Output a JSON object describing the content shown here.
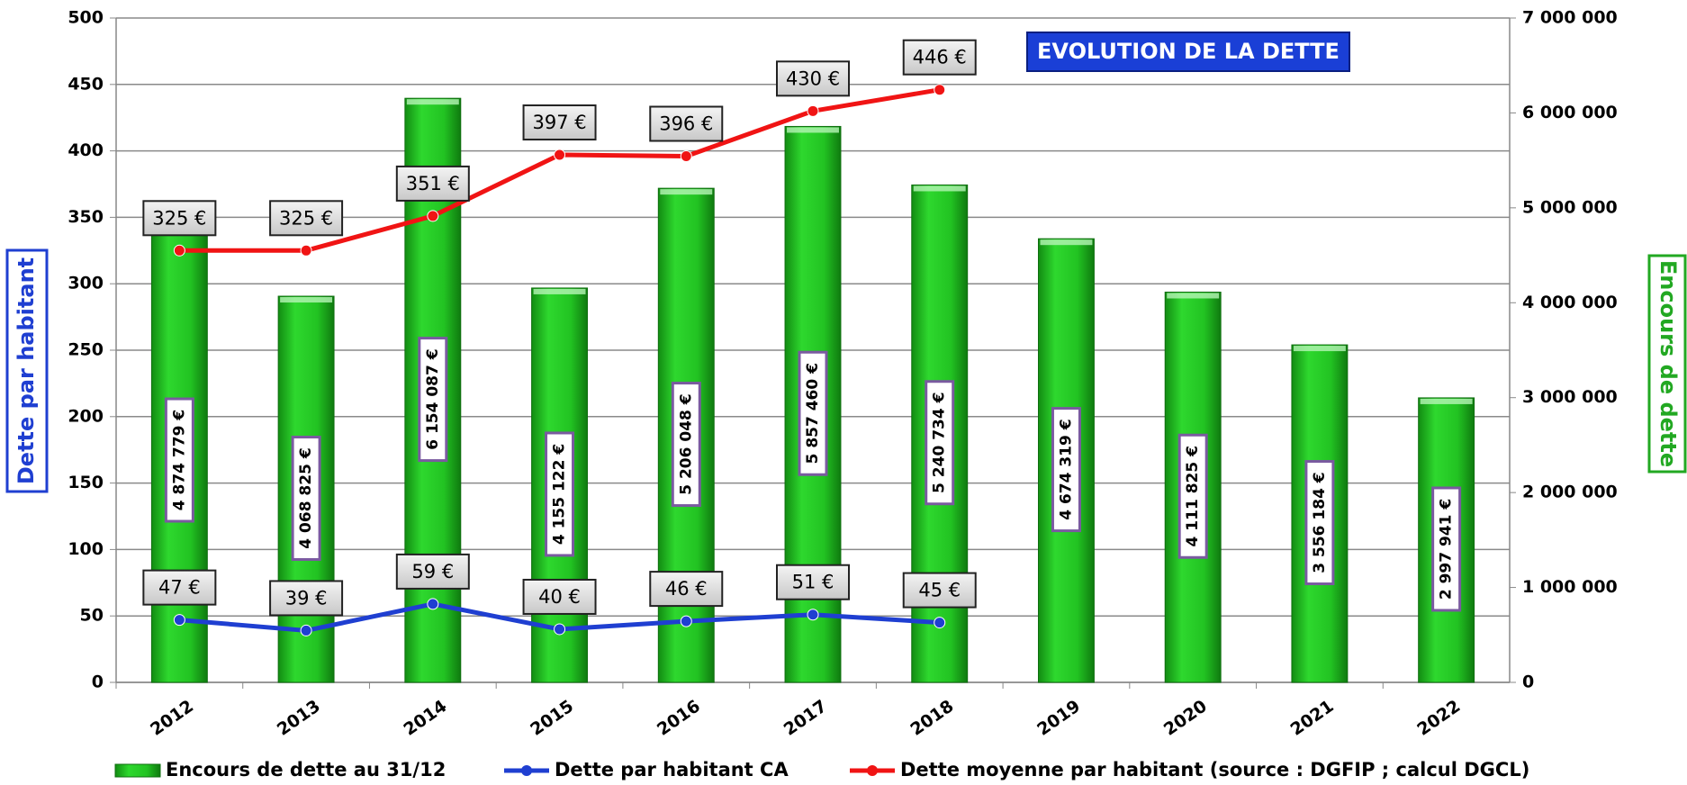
{
  "chart_data": {
    "type": "combo",
    "title": "EVOLUTION DE LA DETTE",
    "y_label": "Dette par habitant",
    "y2_label": "Encours de dette",
    "categories": [
      "2012",
      "2013",
      "2014",
      "2015",
      "2016",
      "2017",
      "2018",
      "2019",
      "2020",
      "2021",
      "2022"
    ],
    "ylim": [
      0,
      500
    ],
    "yticks": [
      0,
      50,
      100,
      150,
      200,
      250,
      300,
      350,
      400,
      450,
      500
    ],
    "y2lim": [
      0,
      7000000
    ],
    "y2ticks": [
      0,
      {
        "value": 1000000,
        "label": "1 000 000"
      },
      {
        "value": 2000000,
        "label": "2 000 000"
      },
      {
        "value": 3000000,
        "label": "3 000 000"
      },
      {
        "value": 4000000,
        "label": "4 000 000"
      },
      {
        "value": 5000000,
        "label": "5 000 000"
      },
      {
        "value": 6000000,
        "label": "6 000 000"
      },
      {
        "value": 7000000,
        "label": "7 000 000"
      }
    ],
    "grid": true,
    "legend": "bottom",
    "series": [
      {
        "name": "Encours de dette au 31/12",
        "type": "bar",
        "axis": "y2",
        "color": "#22c322",
        "values": [
          4874779,
          4068825,
          6154087,
          4155122,
          5206048,
          5857460,
          5240734,
          4674319,
          4111825,
          3556184,
          2997941
        ],
        "value_labels": [
          "4 874 779 €",
          "4 068 825 €",
          "6 154 087 €",
          "4 155 122 €",
          "5 206 048 €",
          "5 857 460 €",
          "5 240 734 €",
          "4 674 319 €",
          "4 111 825 €",
          "3 556 184 €",
          "2 997 941 €"
        ]
      },
      {
        "name": "Dette par habitant CA",
        "type": "line",
        "color": "#1f3fd1",
        "values": [
          47,
          39,
          59,
          40,
          46,
          51,
          45,
          null,
          null,
          null,
          null
        ],
        "value_labels": [
          "47 €",
          "39 €",
          "59 €",
          "40 €",
          "46 €",
          "51 €",
          "45 €",
          null,
          null,
          null,
          null
        ]
      },
      {
        "name": "Dette moyenne par habitant (source : DGFIP ; calcul DGCL)",
        "type": "line",
        "color": "#f01414",
        "values": [
          325,
          325,
          351,
          397,
          396,
          430,
          446,
          null,
          null,
          null,
          null
        ],
        "value_labels": [
          "325 €",
          "325 €",
          "351 €",
          "397 €",
          "396 €",
          "430 €",
          "446 €",
          null,
          null,
          null,
          null
        ]
      }
    ]
  }
}
